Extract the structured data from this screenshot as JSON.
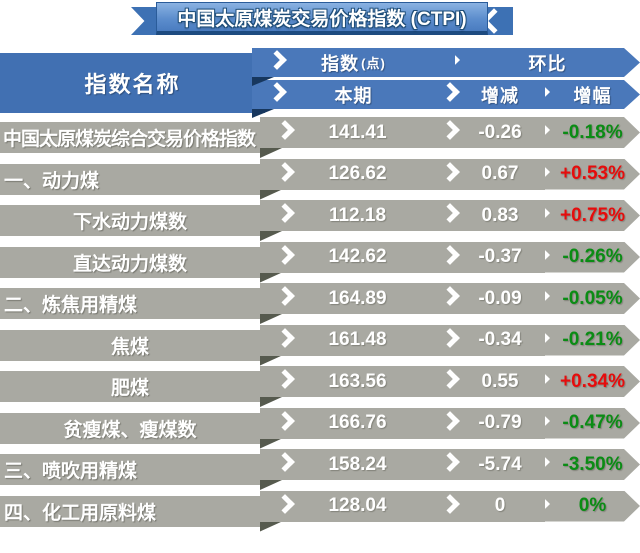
{
  "title": {
    "text": "中国太原煤炭交易价格指数 (CTPI)"
  },
  "table": {
    "name_header": "指数名称",
    "group_headers": [
      {
        "label": "指数",
        "unit": "(点)"
      },
      {
        "label": "环比"
      }
    ],
    "col_headers": [
      "本期",
      "增减",
      "增幅"
    ],
    "rows": [
      {
        "label": "中国太原煤炭综合交易价格指数",
        "value": "141.41",
        "change": "-0.26",
        "pct": "-0.18%",
        "align": "full",
        "trend": "down"
      },
      {
        "label": "一、动力煤",
        "value": "126.62",
        "change": "0.67",
        "pct": "+0.53%",
        "align": "left",
        "trend": "up"
      },
      {
        "label": "下水动力煤数",
        "value": "112.18",
        "change": "0.83",
        "pct": "+0.75%",
        "align": "center",
        "trend": "up"
      },
      {
        "label": "直达动力煤数",
        "value": "142.62",
        "change": "-0.37",
        "pct": "-0.26%",
        "align": "center",
        "trend": "down"
      },
      {
        "label": "二、炼焦用精煤",
        "value": "164.89",
        "change": "-0.09",
        "pct": "-0.05%",
        "align": "left",
        "trend": "down"
      },
      {
        "label": "焦煤",
        "value": "161.48",
        "change": "-0.34",
        "pct": "-0.21%",
        "align": "center",
        "trend": "down"
      },
      {
        "label": "肥煤",
        "value": "163.56",
        "change": "0.55",
        "pct": "+0.34%",
        "align": "center",
        "trend": "up"
      },
      {
        "label": "贫瘦煤、瘦煤数",
        "value": "166.76",
        "change": "-0.79",
        "pct": "-0.47%",
        "align": "center",
        "trend": "down"
      },
      {
        "label": "三、喷吹用精煤",
        "value": "158.24",
        "change": "-5.74",
        "pct": "-3.50%",
        "align": "left",
        "trend": "down"
      },
      {
        "label": "四、化工用原料煤",
        "value": "128.04",
        "change": "0",
        "pct": "0%",
        "align": "left",
        "trend": "zero"
      }
    ]
  },
  "colors": {
    "up_red": "#e60c0c",
    "down_green": "#0a8c14",
    "band_blue": "#4a78ba",
    "band_gray": "#a9a9a2",
    "fold_navy": "#17375e",
    "fold_gray": "#565a4e"
  },
  "chart_data": {
    "type": "table",
    "title": "中国太原煤炭交易价格指数 (CTPI)",
    "columns": [
      "指数名称",
      "本期(点)",
      "增减",
      "增幅"
    ],
    "rows": [
      [
        "中国太原煤炭综合交易价格指数",
        141.41,
        -0.26,
        "-0.18%"
      ],
      [
        "一、动力煤",
        126.62,
        0.67,
        "+0.53%"
      ],
      [
        "下水动力煤数",
        112.18,
        0.83,
        "+0.75%"
      ],
      [
        "直达动力煤数",
        142.62,
        -0.37,
        "-0.26%"
      ],
      [
        "二、炼焦用精煤",
        164.89,
        -0.09,
        "-0.05%"
      ],
      [
        "焦煤",
        161.48,
        -0.34,
        "-0.21%"
      ],
      [
        "肥煤",
        163.56,
        0.55,
        "+0.34%"
      ],
      [
        "贫瘦煤、瘦煤数",
        166.76,
        -0.79,
        "-0.47%"
      ],
      [
        "三、喷吹用精煤",
        158.24,
        -5.74,
        "-3.50%"
      ],
      [
        "四、化工用原料煤",
        128.04,
        0,
        "0%"
      ]
    ]
  }
}
